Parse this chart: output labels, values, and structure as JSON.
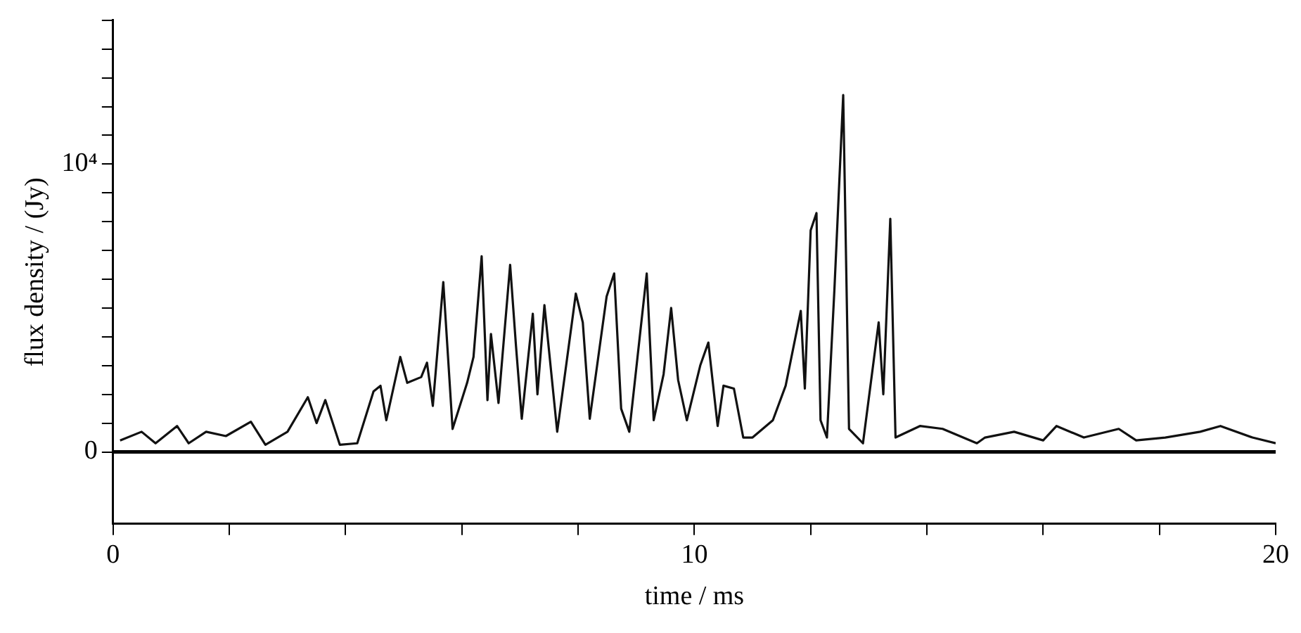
{
  "chart_data": {
    "type": "line",
    "xlabel": "time / ms",
    "ylabel": "flux density / (Jy)",
    "xlim": [
      0,
      20
    ],
    "ylim": [
      -2500,
      15000
    ],
    "xticks": [
      0,
      {
        "value": 2,
        "label": null
      },
      {
        "value": 4,
        "label": null
      },
      {
        "value": 6,
        "label": null
      },
      {
        "value": 8,
        "label": null
      },
      10,
      {
        "value": 12,
        "label": null
      },
      {
        "value": 14,
        "label": null
      },
      {
        "value": 16,
        "label": null
      },
      {
        "value": 18,
        "label": null
      },
      20
    ],
    "yticks": [
      0,
      {
        "value": 1000,
        "label": null
      },
      {
        "value": 2000,
        "label": null
      },
      {
        "value": 3000,
        "label": null
      },
      {
        "value": 4000,
        "label": null
      },
      {
        "value": 5000,
        "label": null
      },
      {
        "value": 6000,
        "label": null
      },
      {
        "value": 7000,
        "label": null
      },
      {
        "value": 8000,
        "label": null
      },
      {
        "value": 9000,
        "label": null
      },
      {
        "value": 10000,
        "label": "10⁴"
      },
      {
        "value": 11000,
        "label": null
      },
      {
        "value": 12000,
        "label": null
      },
      {
        "value": 13000,
        "label": null
      },
      {
        "value": 14000,
        "label": null
      },
      {
        "value": 15000,
        "label": null
      }
    ],
    "grid": false,
    "legend": false,
    "marker": "none",
    "line_style": "solid",
    "ref_lines": [
      {
        "axis": "y",
        "value": 0,
        "color": "#000000"
      }
    ],
    "series": [
      {
        "color": "#111111",
        "x": [
          0.12,
          0.49,
          0.73,
          1.1,
          1.3,
          1.6,
          1.94,
          2.37,
          2.62,
          3.0,
          3.35,
          3.5,
          3.65,
          3.9,
          4.2,
          4.48,
          4.6,
          4.7,
          4.94,
          5.06,
          5.3,
          5.4,
          5.5,
          5.68,
          5.84,
          6.09,
          6.2,
          6.34,
          6.44,
          6.5,
          6.63,
          6.83,
          6.93,
          7.03,
          7.22,
          7.3,
          7.42,
          7.64,
          7.96,
          8.08,
          8.2,
          8.49,
          8.62,
          8.74,
          8.88,
          9.18,
          9.3,
          9.47,
          9.6,
          9.72,
          9.87,
          10.1,
          10.24,
          10.4,
          10.5,
          10.68,
          10.84,
          11.0,
          11.35,
          11.57,
          11.83,
          11.9,
          12.0,
          12.1,
          12.17,
          12.28,
          12.41,
          12.56,
          12.66,
          12.9,
          13.17,
          13.25,
          13.37,
          13.46,
          13.88,
          14.27,
          14.86,
          15.0,
          15.5,
          16.0,
          16.23,
          16.7,
          17.3,
          17.6,
          18.1,
          18.7,
          19.05,
          19.6,
          20.0
        ],
        "values": [
          400,
          700,
          300,
          900,
          300,
          700,
          550,
          1050,
          250,
          700,
          1900,
          1000,
          1800,
          250,
          300,
          2100,
          2300,
          1100,
          3300,
          2400,
          2600,
          3100,
          1600,
          5900,
          800,
          2400,
          3300,
          6800,
          1800,
          4100,
          1700,
          6500,
          3700,
          1150,
          4800,
          2000,
          5100,
          700,
          5500,
          4500,
          1150,
          5400,
          6200,
          1500,
          700,
          6200,
          1100,
          2700,
          5000,
          2500,
          1100,
          3000,
          3800,
          900,
          2300,
          2200,
          500,
          500,
          1100,
          2300,
          4900,
          2200,
          7700,
          8300,
          1100,
          500,
          5700,
          12400,
          800,
          300,
          4500,
          2000,
          8100,
          500,
          900,
          800,
          300,
          500,
          700,
          400,
          900,
          500,
          800,
          400,
          500,
          700,
          900,
          500,
          300
        ]
      }
    ]
  }
}
